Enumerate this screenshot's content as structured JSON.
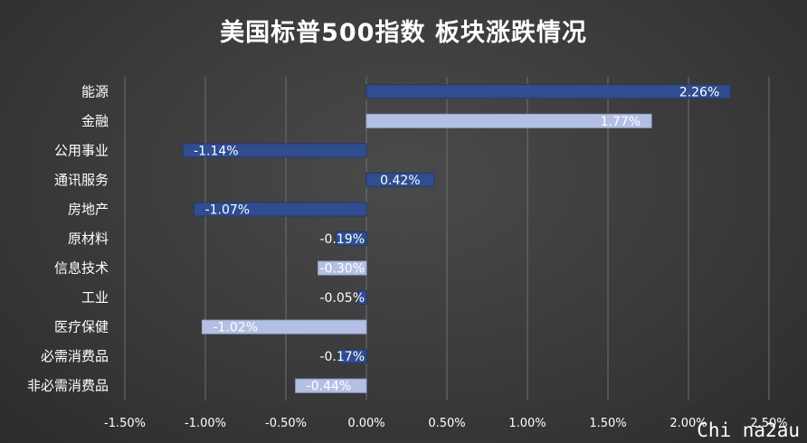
{
  "title": "美国标普500指数 板块涨跌情况",
  "watermark": "Chi na2au",
  "colors": {
    "dark_bar": "#2f4d8f",
    "light_bar": "#b4bfe4",
    "grid": "#6f6f6f",
    "text": "#ffffff"
  },
  "chart_data": {
    "type": "bar",
    "orientation": "horizontal",
    "title": "美国标普500指数 板块涨跌情况",
    "xlabel": "",
    "ylabel": "",
    "xlim": [
      -1.5,
      2.5
    ],
    "x_ticks": [
      "-1.50%",
      "-1.00%",
      "-0.50%",
      "0.00%",
      "0.50%",
      "1.00%",
      "1.50%",
      "2.00%",
      "2.50%"
    ],
    "grid": "vertical",
    "categories": [
      "能源",
      "金融",
      "公用事业",
      "通讯服务",
      "房地产",
      "原材料",
      "信息技术",
      "工业",
      "医疗保健",
      "必需消费品",
      "非必需消费品"
    ],
    "values": [
      2.26,
      1.77,
      -1.14,
      0.42,
      -1.07,
      -0.19,
      -0.3,
      -0.05,
      -1.02,
      -0.17,
      -0.44
    ],
    "labels": [
      "2.26%",
      "1.77%",
      "-1.14%",
      "0.42%",
      "-1.07%",
      "-0.19%",
      "-0.30%",
      "-0.05%",
      "-1.02%",
      "-0.17%",
      "-0.44%"
    ],
    "bar_shade": [
      "dark",
      "light",
      "dark",
      "dark",
      "dark",
      "dark",
      "light",
      "dark",
      "light",
      "dark",
      "light"
    ]
  }
}
